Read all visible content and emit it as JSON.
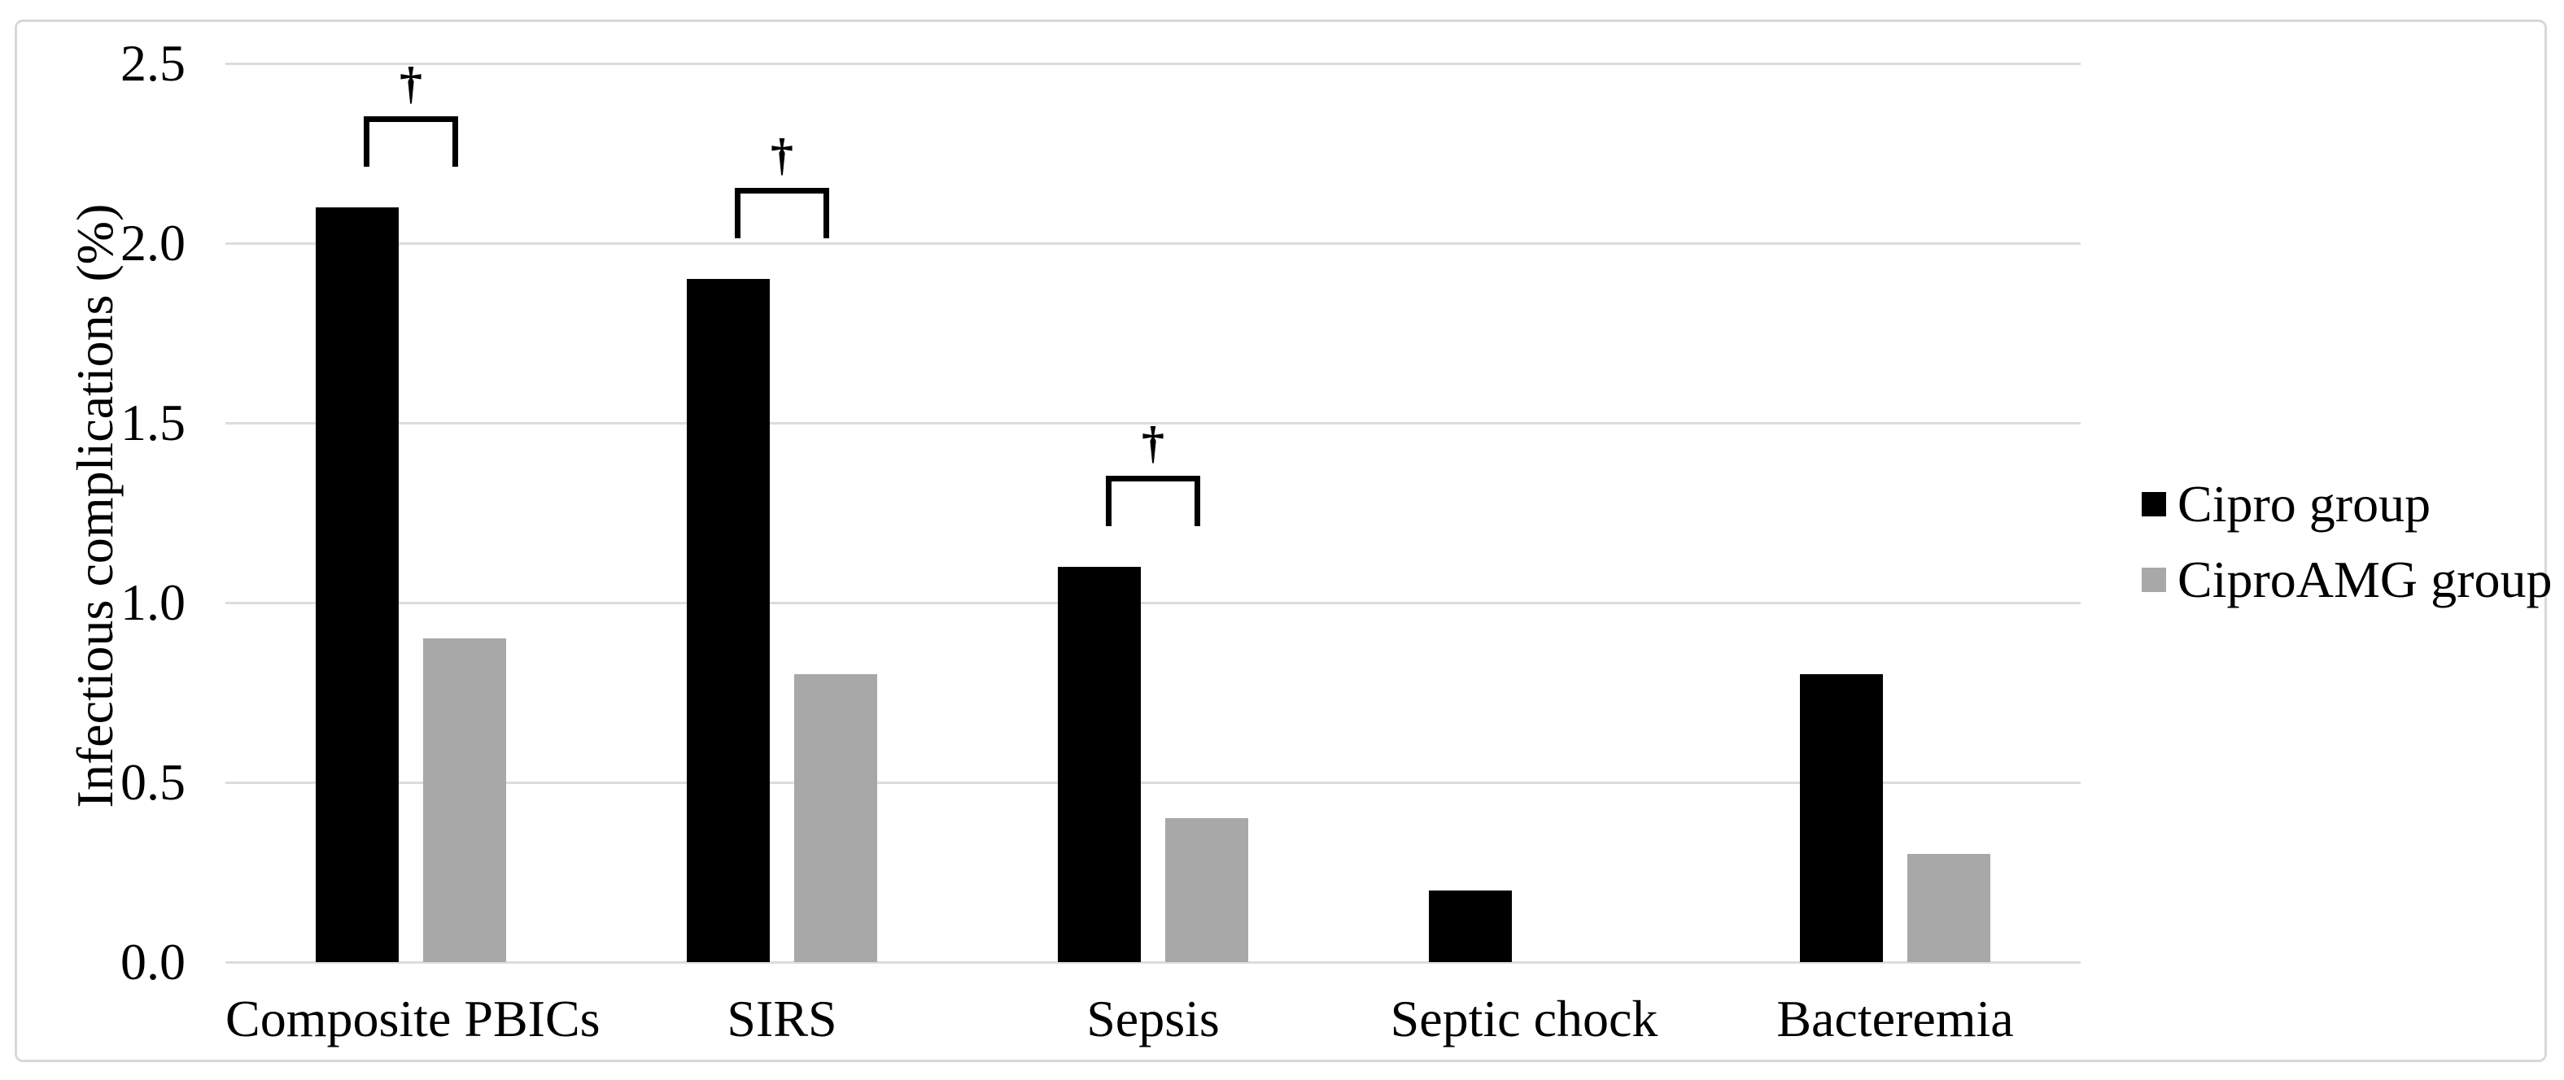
{
  "chart_data": {
    "type": "bar",
    "title": "",
    "ylabel": "Infectious complications (%)",
    "xlabel": "",
    "categories": [
      "Composite PBICs",
      "SIRS",
      "Sepsis",
      "Septic chock",
      "Bacteremia"
    ],
    "series": [
      {
        "name": "Cipro group",
        "color": "#000000",
        "values": [
          2.1,
          1.9,
          1.1,
          0.2,
          0.8
        ]
      },
      {
        "name": "CiproAMG group",
        "color": "#a8a8a8",
        "values": [
          0.9,
          0.8,
          0.4,
          0.0,
          0.3
        ]
      }
    ],
    "ylim": [
      0,
      2.5
    ],
    "ytick_labels": [
      "0.0",
      "0.5",
      "1.0",
      "1.5",
      "2.0",
      "2.5"
    ],
    "grid": "horizontal",
    "gridline_color": "#dcdcdc",
    "legend_position": "right",
    "significance": {
      "symbol": "†",
      "categories": [
        0,
        1,
        2
      ]
    }
  }
}
